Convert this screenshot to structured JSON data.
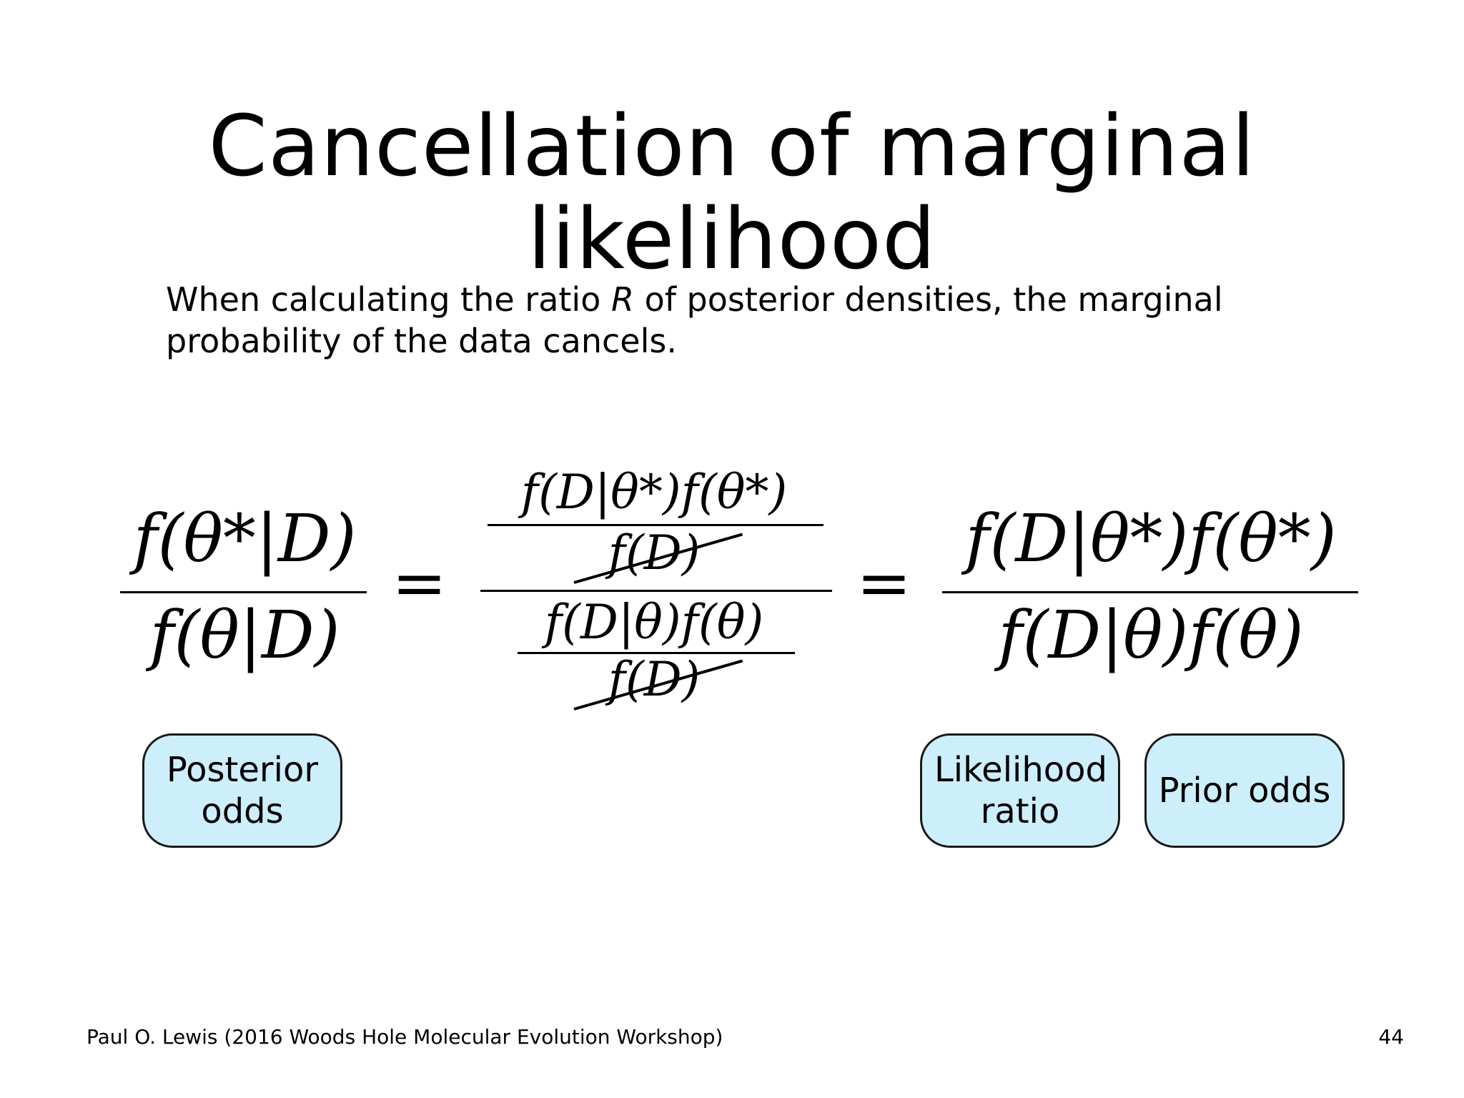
{
  "slide": {
    "title": "Cancellation of marginal likelihood",
    "body_before": "When calculating the ratio ",
    "body_var": "R",
    "body_after": " of posterior densities, the marginal probability of the data cancels."
  },
  "equation": {
    "lhs_num": "f(θ*|D)",
    "lhs_den": "f(θ|D)",
    "equals": "=",
    "mid_num_num": "f(D|θ*)f(θ*)",
    "mid_num_den": "f(D)",
    "mid_den_num": "f(D|θ)f(θ)",
    "mid_den_den": "f(D)",
    "rhs_num": "f(D|θ*)f(θ*)",
    "rhs_den": "f(D|θ)f(θ)"
  },
  "labels": {
    "posterior_odds": "Posterior odds",
    "likelihood_ratio": "Likelihood ratio",
    "prior_odds": "Prior odds"
  },
  "footer": {
    "credit": "Paul O. Lewis (2016 Woods Hole Molecular Evolution Workshop)",
    "page": "44"
  },
  "colors": {
    "box_fill": "#cdeffc",
    "box_border": "#1a1a1a"
  }
}
